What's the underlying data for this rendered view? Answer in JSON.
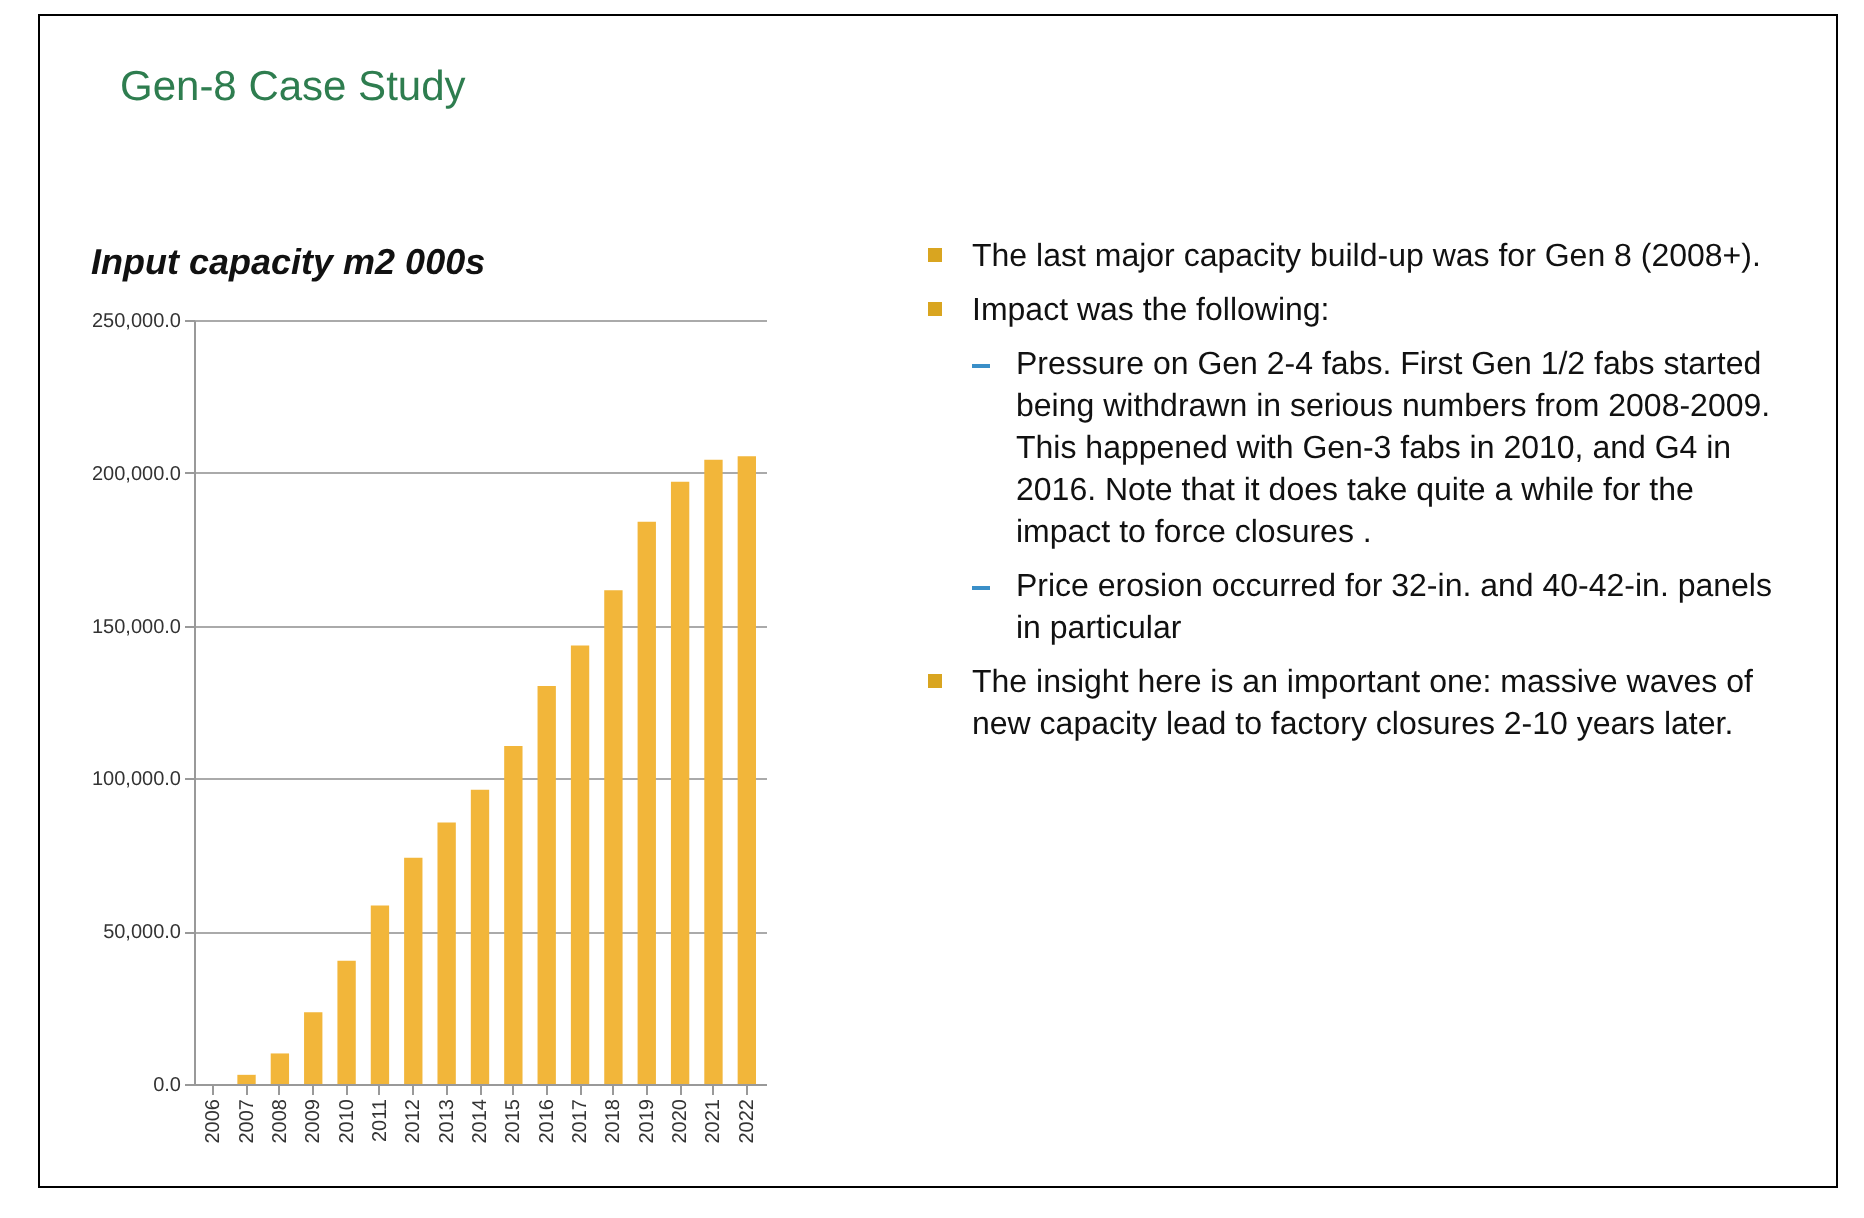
{
  "chart_data": {
    "type": "bar",
    "title": "Gen-8 Case Study",
    "subtitle": "Input capacity m2 000s",
    "categories": [
      "2006",
      "2007",
      "2008",
      "2009",
      "2010",
      "2011",
      "2012",
      "2013",
      "2014",
      "2015",
      "2016",
      "2017",
      "2018",
      "2019",
      "2020",
      "2021",
      "2022"
    ],
    "values": [
      0,
      3000,
      10000,
      23500,
      40300,
      58400,
      74000,
      85600,
      96300,
      110600,
      130200,
      143500,
      161600,
      184000,
      197100,
      204300,
      205400
    ],
    "color": "#f2b63a",
    "ylim": [
      0,
      250000
    ],
    "yticks": [
      {
        "value": 0,
        "label": "0.0"
      },
      {
        "value": 50000,
        "label": "50,000.0"
      },
      {
        "value": 100000,
        "label": "100,000.0"
      },
      {
        "value": 150000,
        "label": "150,000.0"
      },
      {
        "value": 200000,
        "label": "200,000.0"
      },
      {
        "value": 250000,
        "label": "250,000.0"
      }
    ],
    "grid": "y",
    "annotations": [
      "The last major capacity build-up was for Gen 8 (2008+).",
      "Impact was the following:",
      "Pressure on Gen 2-4 fabs. First Gen 1/2 fabs started being withdrawn in serious numbers from 2008-2009. This happened with Gen-3 fabs in 2010, and G4 in 2016. Note that it does take quite a while for the impact to force closures .",
      "Price erosion occurred for 32-in. and 40-42-in. panels in particular",
      "The insight here is an important one: massive waves of new capacity lead to factory closures 2-10 years later."
    ]
  }
}
